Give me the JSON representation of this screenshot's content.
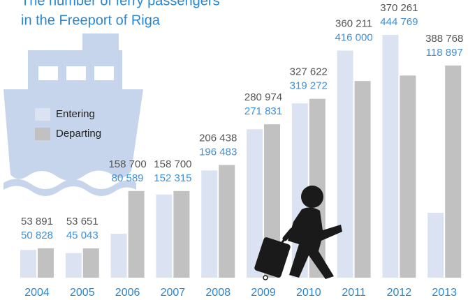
{
  "chart_data": {
    "type": "bar",
    "title_lines": [
      "The number of ferry passengers",
      "in the Freeport of Riga"
    ],
    "categories": [
      "2004",
      "2005",
      "2006",
      "2007",
      "2008",
      "2009",
      "2010",
      "2011",
      "2012",
      "2013"
    ],
    "series": [
      {
        "name": "Entering",
        "color": "#dbe3f2",
        "values": [
          50828,
          45043,
          80589,
          152315,
          196483,
          271831,
          319272,
          416000,
          444769,
          118897
        ],
        "value_labels": [
          "50 828",
          "45 043",
          "80 589",
          "152 315",
          "196 483",
          "271 831",
          "319 272",
          "416 000",
          "444 769",
          "118 897"
        ]
      },
      {
        "name": "Departing",
        "color": "#c1c1c1",
        "values": [
          53891,
          53651,
          158700,
          158700,
          206438,
          280974,
          327622,
          360211,
          370261,
          388768
        ],
        "value_labels": [
          "53 891",
          "53 651",
          "158 700",
          "158 700",
          "206 438",
          "280 974",
          "327 622",
          "360 211",
          "370 261",
          "388 768"
        ]
      }
    ],
    "legend": "upper left"
  }
}
